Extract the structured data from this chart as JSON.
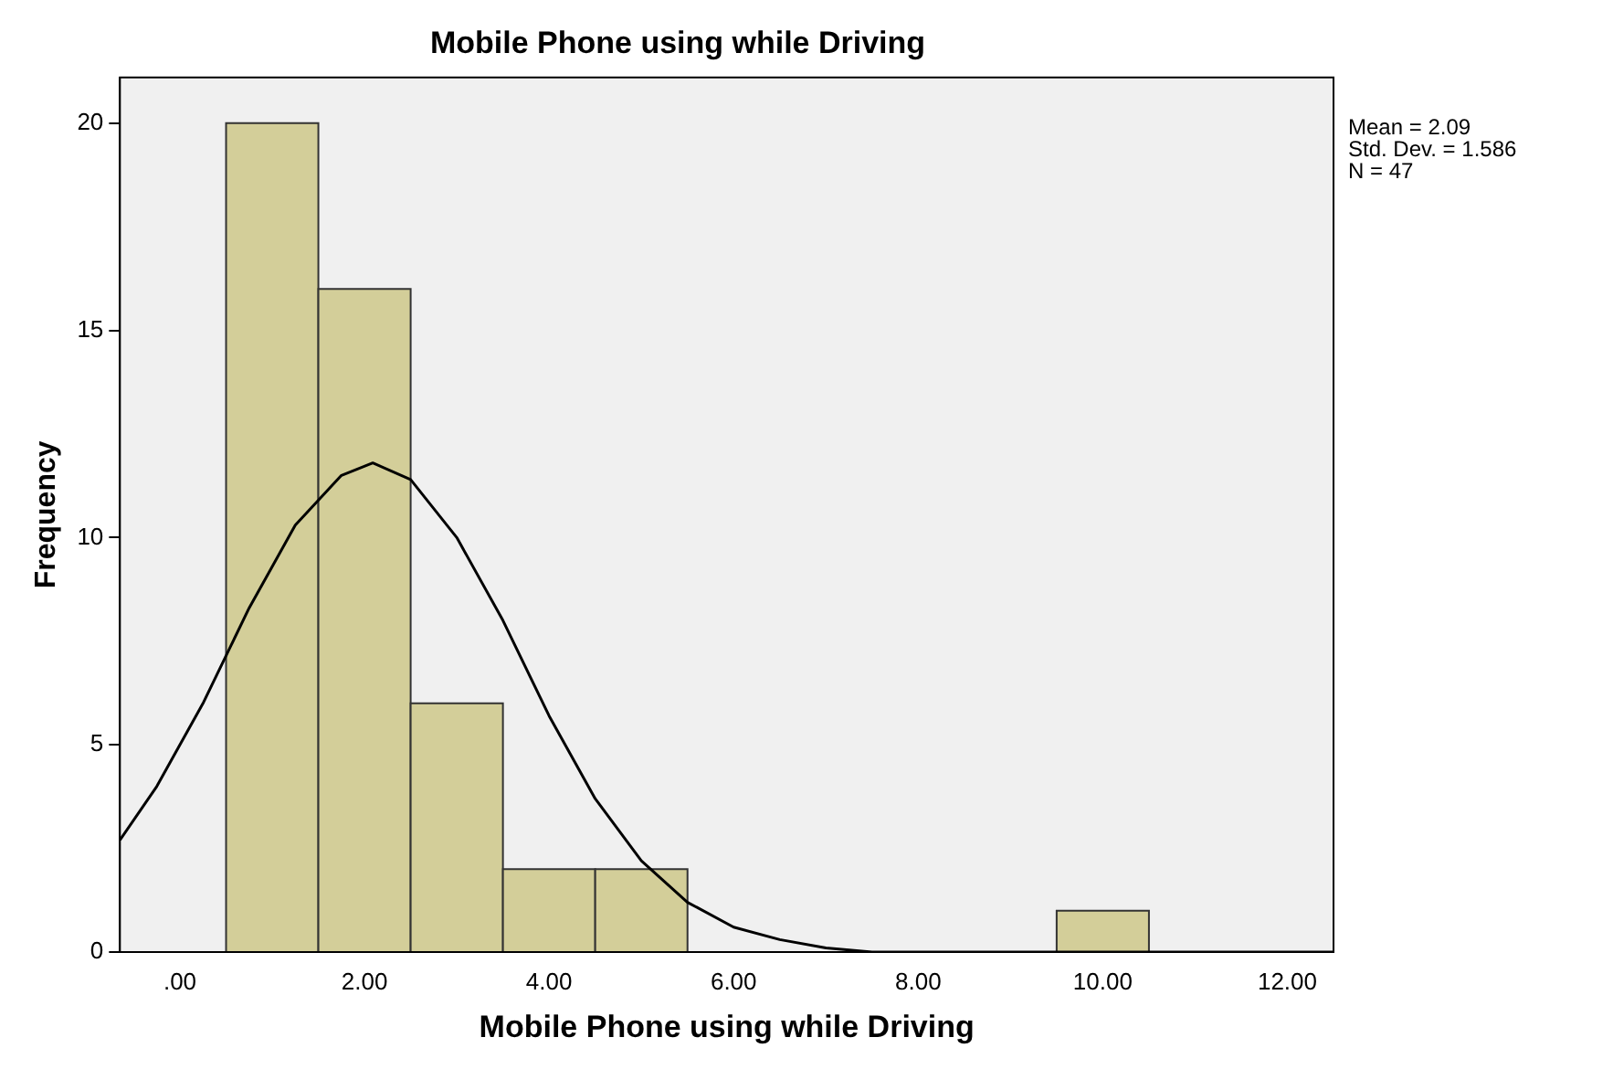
{
  "chart_data": {
    "type": "histogram",
    "title": "Mobile Phone using while Driving",
    "xlabel": "Mobile Phone using while Driving",
    "ylabel": "Frequency",
    "bins": [
      0.5,
      1.5,
      2.5,
      3.5,
      4.5,
      5.5,
      6.5,
      7.5,
      8.5,
      9.5,
      10.5
    ],
    "values": [
      20,
      16,
      6,
      2,
      2,
      0,
      0,
      0,
      0,
      1
    ],
    "color": "#d3ce99",
    "series": [
      {
        "type": "line",
        "color": "#000000",
        "x": [
          -0.65,
          -0.25,
          0.25,
          0.75,
          1.25,
          1.75,
          2.09,
          2.5,
          3,
          3.5,
          4,
          4.5,
          5,
          5.5,
          6,
          6.5,
          7,
          7.5,
          8,
          9,
          10,
          11,
          12.5
        ],
        "values": [
          2.7,
          4,
          6,
          8.3,
          10.3,
          11.5,
          11.8,
          11.4,
          10,
          8,
          5.7,
          3.7,
          2.2,
          1.2,
          0.6,
          0.3,
          0.1,
          0,
          0,
          0,
          0,
          0,
          0
        ]
      }
    ],
    "xlim": [
      -0.65,
      12.5
    ],
    "xticks": [
      {
        "value": 0,
        "label": ".00"
      },
      {
        "value": 2,
        "label": "2.00"
      },
      {
        "value": 4,
        "label": "4.00"
      },
      {
        "value": 6,
        "label": "6.00"
      },
      {
        "value": 8,
        "label": "8.00"
      },
      {
        "value": 10,
        "label": "10.00"
      },
      {
        "value": 12,
        "label": "12.00"
      }
    ],
    "ylim": [
      0,
      21.1
    ],
    "yticks": [
      0,
      5,
      10,
      15,
      20
    ],
    "grid": false,
    "legend": false,
    "annotations": [
      "Mean = 2.09",
      "Std. Dev. = 1.586",
      "N = 47"
    ]
  }
}
